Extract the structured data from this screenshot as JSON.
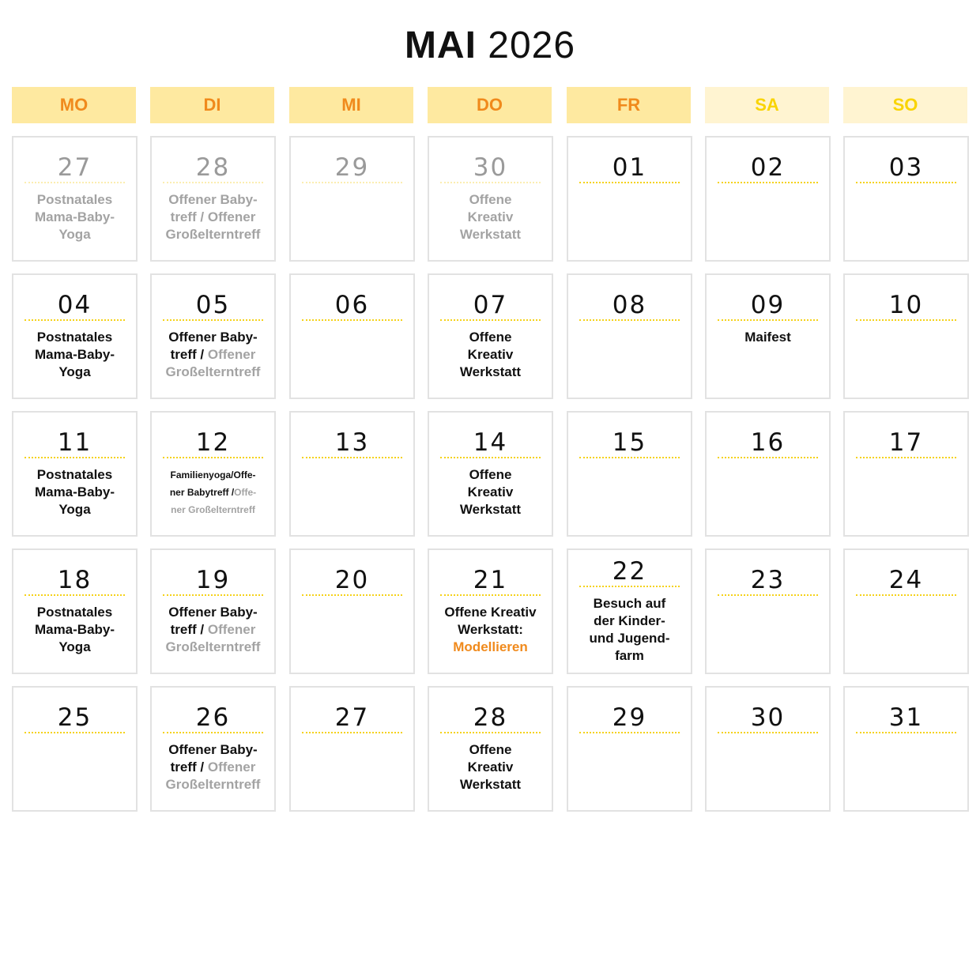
{
  "title": {
    "month": "MAI",
    "year": "2026"
  },
  "colors": {
    "weekday_bg": "#fee9a0",
    "weekday_text": "#f08a1c",
    "weekend_bg": "#fff4d1",
    "weekend_text": "#f9d400",
    "divider": "#f5d21a"
  },
  "weekdays": [
    {
      "label": "MO",
      "weekend": false
    },
    {
      "label": "DI",
      "weekend": false
    },
    {
      "label": "MI",
      "weekend": false
    },
    {
      "label": "DO",
      "weekend": false
    },
    {
      "label": "FR",
      "weekend": false
    },
    {
      "label": "SA",
      "weekend": true
    },
    {
      "label": "SO",
      "weekend": true
    }
  ],
  "cells": [
    {
      "day": "27",
      "muted": true,
      "segments": [
        {
          "text": "Postnatales\nMama-Baby-\nYoga",
          "style": "gray"
        }
      ]
    },
    {
      "day": "28",
      "muted": true,
      "segments": [
        {
          "text": "Offener Baby-\ntreff / Offener\nGroßelterntreff",
          "style": "gray"
        }
      ]
    },
    {
      "day": "29",
      "muted": true,
      "segments": []
    },
    {
      "day": "30",
      "muted": true,
      "segments": [
        {
          "text": "Offene\nKreativ\nWerkstatt",
          "style": "gray"
        }
      ]
    },
    {
      "day": "01",
      "muted": false,
      "segments": []
    },
    {
      "day": "02",
      "muted": false,
      "segments": []
    },
    {
      "day": "03",
      "muted": false,
      "segments": []
    },
    {
      "day": "04",
      "muted": false,
      "segments": [
        {
          "text": "Postnatales\nMama-Baby-\nYoga",
          "style": "dark"
        }
      ]
    },
    {
      "day": "05",
      "muted": false,
      "segments": [
        {
          "text": "Offener Baby-\ntreff / ",
          "style": "dark"
        },
        {
          "text": "Offener\nGroßelterntreff",
          "style": "gray"
        }
      ]
    },
    {
      "day": "06",
      "muted": false,
      "segments": []
    },
    {
      "day": "07",
      "muted": false,
      "segments": [
        {
          "text": "Offene\nKreativ\nWerkstatt",
          "style": "dark"
        }
      ]
    },
    {
      "day": "08",
      "muted": false,
      "segments": []
    },
    {
      "day": "09",
      "muted": false,
      "segments": [
        {
          "text": "Maifest",
          "style": "dark"
        }
      ]
    },
    {
      "day": "10",
      "muted": false,
      "segments": []
    },
    {
      "day": "11",
      "muted": false,
      "segments": [
        {
          "text": "Postnatales\nMama-Baby-\nYoga",
          "style": "dark"
        }
      ]
    },
    {
      "day": "12",
      "muted": false,
      "small": true,
      "segments": [
        {
          "text": "Familienyoga/Offe-\nner Babytreff /",
          "style": "dark"
        },
        {
          "text": "Offe-\nner Großelterntreff",
          "style": "gray"
        }
      ]
    },
    {
      "day": "13",
      "muted": false,
      "segments": []
    },
    {
      "day": "14",
      "muted": false,
      "segments": [
        {
          "text": "Offene\nKreativ\nWerkstatt",
          "style": "dark"
        }
      ]
    },
    {
      "day": "15",
      "muted": false,
      "segments": []
    },
    {
      "day": "16",
      "muted": false,
      "segments": []
    },
    {
      "day": "17",
      "muted": false,
      "segments": []
    },
    {
      "day": "18",
      "muted": false,
      "segments": [
        {
          "text": "Postnatales\nMama-Baby-\nYoga",
          "style": "dark"
        }
      ]
    },
    {
      "day": "19",
      "muted": false,
      "segments": [
        {
          "text": "Offener Baby-\ntreff / ",
          "style": "dark"
        },
        {
          "text": "Offener\nGroßelterntreff",
          "style": "gray"
        }
      ]
    },
    {
      "day": "20",
      "muted": false,
      "segments": []
    },
    {
      "day": "21",
      "muted": false,
      "segments": [
        {
          "text": "Offene Kreativ\nWerkstatt:\n",
          "style": "dark"
        },
        {
          "text": "Modellieren",
          "style": "orange"
        }
      ]
    },
    {
      "day": "22",
      "muted": false,
      "raised": true,
      "segments": [
        {
          "text": "Besuch auf\nder Kinder-\nund Jugend-\nfarm",
          "style": "dark"
        }
      ]
    },
    {
      "day": "23",
      "muted": false,
      "segments": []
    },
    {
      "day": "24",
      "muted": false,
      "segments": []
    },
    {
      "day": "25",
      "muted": false,
      "segments": []
    },
    {
      "day": "26",
      "muted": false,
      "segments": [
        {
          "text": "Offener Baby-\ntreff / ",
          "style": "dark"
        },
        {
          "text": "Offener\nGroßelterntreff",
          "style": "gray"
        }
      ]
    },
    {
      "day": "27",
      "muted": false,
      "segments": []
    },
    {
      "day": "28",
      "muted": false,
      "segments": [
        {
          "text": "Offene\nKreativ\nWerkstatt",
          "style": "dark"
        }
      ]
    },
    {
      "day": "29",
      "muted": false,
      "segments": []
    },
    {
      "day": "30",
      "muted": false,
      "segments": []
    },
    {
      "day": "31",
      "muted": false,
      "segments": []
    }
  ]
}
